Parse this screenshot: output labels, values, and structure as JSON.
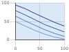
{
  "chart_data": {
    "type": "line",
    "x": [
      0,
      20,
      40,
      60,
      80,
      100
    ],
    "series": [
      {
        "color": "#1f3f8f",
        "values": [
          95,
          85,
          72,
          60,
          48,
          38
        ]
      },
      {
        "color": "#2a5db0",
        "values": [
          80,
          68,
          55,
          42,
          32,
          22
        ]
      },
      {
        "color": "#4a7fc8",
        "values": [
          65,
          52,
          40,
          28,
          18,
          10
        ]
      },
      {
        "color": "#6a9ad8",
        "values": [
          50,
          38,
          26,
          16,
          8,
          3
        ]
      }
    ],
    "xlim": [
      0,
      100
    ],
    "xticks": [
      0,
      50,
      100
    ],
    "ylim": [
      0,
      100
    ],
    "yticks": [
      0,
      50,
      100
    ],
    "grid": true
  }
}
